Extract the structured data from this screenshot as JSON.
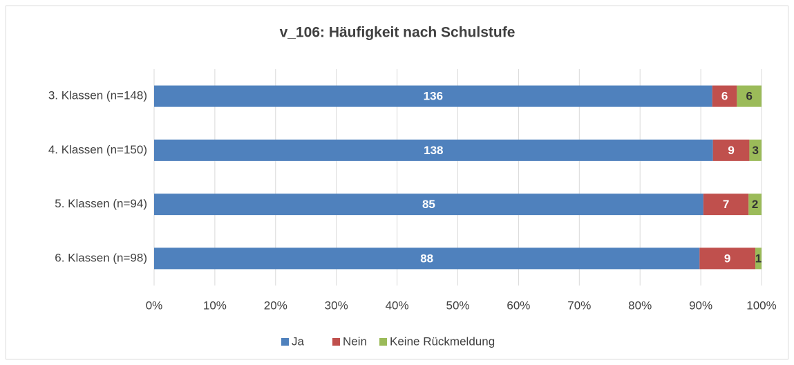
{
  "chart_data": {
    "type": "bar",
    "orientation": "horizontal",
    "stacking": "percent",
    "title": "v_106: Häufigkeit nach Schulstufe",
    "categories": [
      "3. Klassen (n=148)",
      "4. Klassen (n=150)",
      "5. Klassen (n=94)",
      "6. Klassen (n=98)"
    ],
    "series": [
      {
        "name": "Ja",
        "color": "#4f81bd",
        "label_color": "#ffffff",
        "values": [
          136,
          138,
          85,
          88
        ]
      },
      {
        "name": "Nein",
        "color": "#c0504d",
        "label_color": "#ffffff",
        "values": [
          6,
          9,
          7,
          9
        ]
      },
      {
        "name": "Keine Rückmeldung",
        "color": "#9bbb59",
        "label_color": "#333333",
        "values": [
          6,
          3,
          2,
          1
        ]
      }
    ],
    "xlim": [
      0,
      100
    ],
    "xticks": [
      {
        "value": 0,
        "label": "0%"
      },
      {
        "value": 10,
        "label": "10%"
      },
      {
        "value": 20,
        "label": "20%"
      },
      {
        "value": 30,
        "label": "30%"
      },
      {
        "value": 40,
        "label": "40%"
      },
      {
        "value": 50,
        "label": "50%"
      },
      {
        "value": 60,
        "label": "60%"
      },
      {
        "value": 70,
        "label": "70%"
      },
      {
        "value": 80,
        "label": "80%"
      },
      {
        "value": 90,
        "label": "90%"
      },
      {
        "value": 100,
        "label": "100%"
      }
    ],
    "grid": true,
    "legend": "bottom"
  }
}
